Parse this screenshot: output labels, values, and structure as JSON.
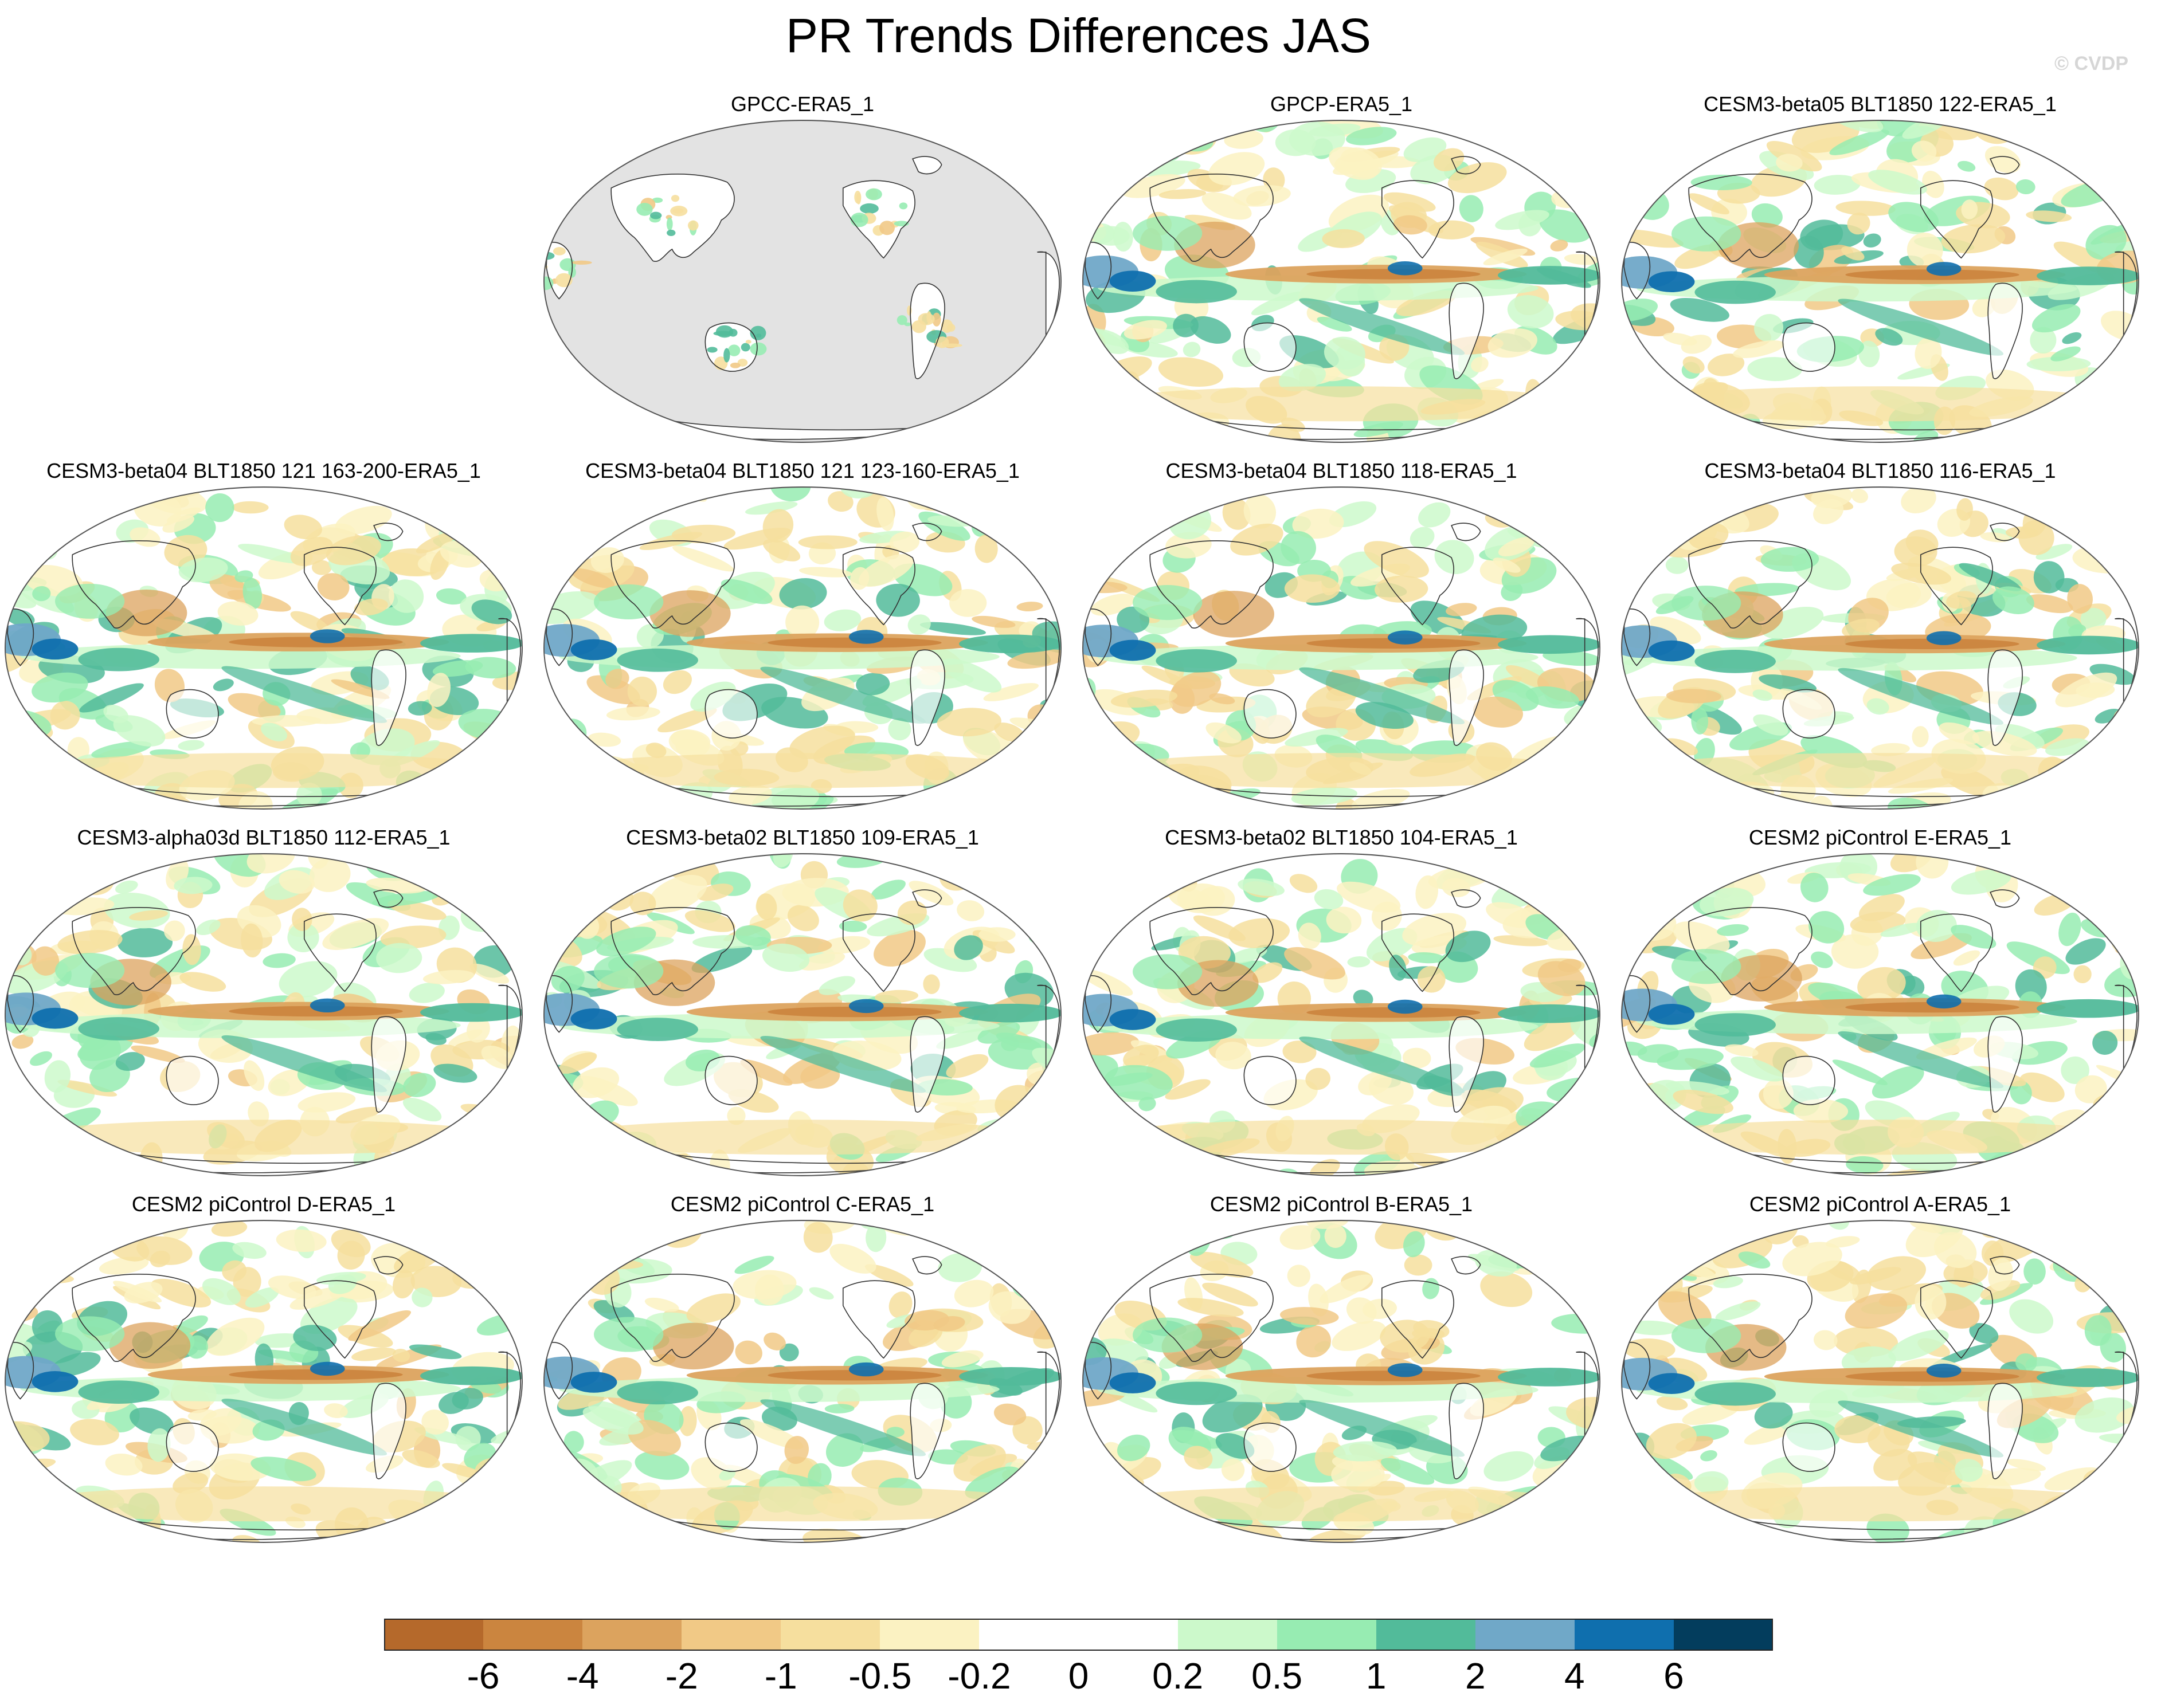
{
  "title": "PR Trends Differences JAS",
  "credit": "© CVDP",
  "panels": [
    {
      "title": "GPCC-ERA5_1",
      "kind": "land"
    },
    {
      "title": "GPCP-ERA5_1",
      "kind": "full"
    },
    {
      "title": "CESM3-beta05 BLT1850 122-ERA5_1",
      "kind": "full"
    },
    {
      "title": "CESM3-beta04 BLT1850 121 163-200-ERA5_1",
      "kind": "full"
    },
    {
      "title": "CESM3-beta04 BLT1850 121 123-160-ERA5_1",
      "kind": "full"
    },
    {
      "title": "CESM3-beta04 BLT1850 118-ERA5_1",
      "kind": "full"
    },
    {
      "title": "CESM3-beta04 BLT1850 116-ERA5_1",
      "kind": "full"
    },
    {
      "title": "CESM3-alpha03d BLT1850 112-ERA5_1",
      "kind": "full"
    },
    {
      "title": "CESM3-beta02 BLT1850 109-ERA5_1",
      "kind": "full"
    },
    {
      "title": "CESM3-beta02 BLT1850 104-ERA5_1",
      "kind": "full"
    },
    {
      "title": "CESM2 piControl E-ERA5_1",
      "kind": "full"
    },
    {
      "title": "CESM2 piControl D-ERA5_1",
      "kind": "full"
    },
    {
      "title": "CESM2 piControl C-ERA5_1",
      "kind": "full"
    },
    {
      "title": "CESM2 piControl B-ERA5_1",
      "kind": "full"
    },
    {
      "title": "CESM2 piControl A-ERA5_1",
      "kind": "full"
    }
  ],
  "colorbar": {
    "labels": [
      "-6",
      "-4",
      "-2",
      "-1",
      "-0.5",
      "-0.2",
      "0",
      "0.2",
      "0.5",
      "1",
      "2",
      "4",
      "6"
    ],
    "colors": [
      "#b5692b",
      "#cb853f",
      "#dca35e",
      "#f1c986",
      "#f6df9e",
      "#fbf2c2",
      "#ffffff",
      "#ffffff",
      "#ccf9cb",
      "#97ecb2",
      "#52bb9a",
      "#70a8c8",
      "#0f6fae",
      "#033d5d"
    ]
  },
  "map_style": {
    "ocean_masked": "#e3e3e3",
    "coast": "#333333",
    "equator_dry": "#c9853f",
    "equator_wet": "#52bb9a",
    "warm_pool_wet": "#0f6fae"
  }
}
